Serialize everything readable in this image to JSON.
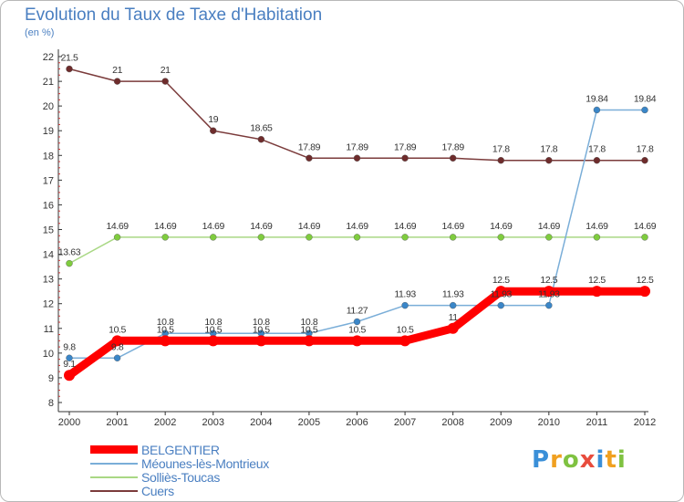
{
  "title": "Evolution du Taux de Taxe d'Habitation",
  "unit_label": "(en %)",
  "brand": {
    "name": "Proxiti",
    "letters": [
      {
        "char": "P",
        "color": "#3a8fd8"
      },
      {
        "char": "r",
        "color": "#f0a020"
      },
      {
        "char": "o",
        "color": "#7fc241"
      },
      {
        "char": "x",
        "color": "#e84c3d"
      },
      {
        "char": "i",
        "color": "#3a8fd8"
      },
      {
        "char": "t",
        "color": "#f0a020"
      },
      {
        "char": "i",
        "color": "#7fc241"
      }
    ]
  },
  "chart_data": {
    "type": "line",
    "title": "Evolution du Taux de Taxe d'Habitation",
    "ylabel": "(en %)",
    "xlabel": "",
    "x": [
      "2000",
      "2001",
      "2002",
      "2003",
      "2004",
      "2005",
      "2006",
      "2007",
      "2008",
      "2009",
      "2010",
      "2011",
      "2012"
    ],
    "ylim": [
      8,
      22
    ],
    "yticks": [
      8,
      9,
      10,
      11,
      12,
      13,
      14,
      15,
      16,
      17,
      18,
      19,
      20,
      21,
      22
    ],
    "grid": false,
    "legend_position": "bottom-left",
    "series": [
      {
        "name": "BELGENTIER",
        "color": "#ff0000",
        "line_width": 9,
        "marker_radius": 6,
        "values": [
          9.1,
          10.5,
          10.5,
          10.5,
          10.5,
          10.5,
          10.5,
          10.5,
          11,
          12.5,
          12.5,
          12.5,
          12.5
        ],
        "labels": [
          "9.1",
          "10.5",
          "10.5",
          "10.5",
          "10.5",
          "10.5",
          "10.5",
          "10.5",
          "11",
          "12.5",
          "12.5",
          "12.5",
          "12.5"
        ]
      },
      {
        "name": "Méounes-lès-Montrieux",
        "color": "#7aaed8",
        "marker_color": "#3a86c8",
        "line_width": 1.5,
        "marker_radius": 3.5,
        "values": [
          9.8,
          9.8,
          10.8,
          10.8,
          10.8,
          10.8,
          11.27,
          11.93,
          11.93,
          11.93,
          11.93,
          19.84,
          19.84
        ],
        "labels": [
          "9.8",
          "9.8",
          "10.8",
          "10.8",
          "10.8",
          "10.8",
          "11.27",
          "11.93",
          "11.93",
          "11.93",
          "11.93",
          "19.84",
          "19.84"
        ]
      },
      {
        "name": "Solliès-Toucas",
        "color": "#a9d884",
        "marker_color": "#7fcc3e",
        "line_width": 1.5,
        "marker_radius": 3.5,
        "values": [
          13.63,
          14.69,
          14.69,
          14.69,
          14.69,
          14.69,
          14.69,
          14.69,
          14.69,
          14.69,
          14.69,
          14.69,
          14.69
        ],
        "labels": [
          "13.63",
          "14.69",
          "14.69",
          "14.69",
          "14.69",
          "14.69",
          "14.69",
          "14.69",
          "14.69",
          "14.69",
          "14.69",
          "14.69",
          "14.69"
        ]
      },
      {
        "name": "Cuers",
        "color": "#7b3b3b",
        "marker_color": "#6e2c2c",
        "line_width": 1.5,
        "marker_radius": 3.5,
        "values": [
          21.5,
          21,
          21,
          19,
          18.65,
          17.89,
          17.89,
          17.89,
          17.89,
          17.8,
          17.8,
          17.8,
          17.8
        ],
        "labels": [
          "21.5",
          "21",
          "21",
          "19",
          "18.65",
          "17.89",
          "17.89",
          "17.89",
          "17.89",
          "17.8",
          "17.8",
          "17.8",
          "17.8"
        ]
      }
    ]
  }
}
